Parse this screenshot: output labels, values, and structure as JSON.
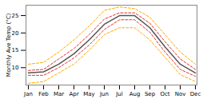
{
  "chart_data": {
    "type": "line",
    "ylabel": "Monthly Ave Temp (°C)",
    "categories": [
      "Jan",
      "Feb",
      "Mar",
      "Apr",
      "May",
      "Jun",
      "Jul",
      "Aug",
      "Sep",
      "Oct",
      "Nov",
      "Dec"
    ],
    "series": [
      {
        "color": "#ffaa00",
        "line_style": "dashed",
        "values": [
          5.5,
          6.0,
          8.5,
          11.0,
          15.0,
          19.5,
          21.5,
          21.5,
          18.0,
          13.0,
          8.0,
          6.0
        ]
      },
      {
        "color": "#ffaa00",
        "line_style": "dashed",
        "values": [
          11.0,
          11.5,
          14.5,
          18.0,
          22.0,
          26.5,
          27.5,
          27.0,
          24.5,
          19.5,
          14.5,
          11.0
        ]
      },
      {
        "color": "#dd3333",
        "line_style": "dashed",
        "values": [
          7.8,
          7.8,
          10.0,
          12.8,
          16.5,
          21.0,
          23.8,
          23.8,
          20.2,
          14.5,
          9.5,
          7.5
        ]
      },
      {
        "color": "#dd3333",
        "line_style": "dashed",
        "values": [
          9.2,
          9.5,
          12.5,
          15.5,
          19.5,
          24.0,
          25.8,
          25.8,
          22.8,
          17.5,
          12.5,
          9.5
        ]
      },
      {
        "color": "#555555",
        "line_style": "solid",
        "values": [
          8.5,
          8.8,
          11.0,
          14.0,
          18.0,
          22.5,
          25.0,
          25.0,
          21.5,
          16.0,
          11.0,
          8.5
        ]
      }
    ],
    "ylim": [
      5,
      28
    ],
    "yticks": [
      10,
      15,
      20,
      25
    ],
    "grid": false
  }
}
